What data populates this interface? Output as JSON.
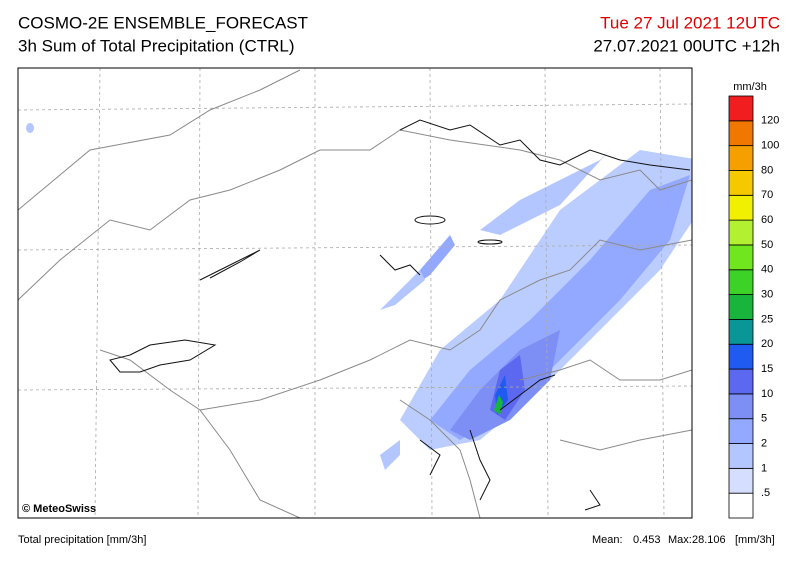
{
  "header": {
    "title": "COSMO-2E ENSEMBLE_FORECAST",
    "subtitle": "3h Sum of Total Precipitation (CTRL)",
    "valid_time": "Tue 27 Jul 2021 12UTC",
    "run": "27.07.2021 00UTC +12h"
  },
  "legend": {
    "unit": "mm/3h",
    "ticks": [
      {
        "value": 0.5,
        "label": ".5"
      },
      1,
      2,
      5,
      10,
      15,
      20,
      25,
      30,
      40,
      50,
      60,
      70,
      80,
      100,
      120
    ],
    "colors": [
      "#ffffff",
      "#d5deff",
      "#b4c6ff",
      "#93a8ff",
      "#7d8ff5",
      "#5c68f0",
      "#1f5bf0",
      "#0a9696",
      "#18b43c",
      "#3cd228",
      "#70e61e",
      "#b4f032",
      "#f0f000",
      "#f5c800",
      "#f5a000",
      "#f07800",
      "#f01e1e"
    ]
  },
  "credit": "© MeteoSwiss",
  "footer": {
    "left": "Total precipitation [mm/3h]",
    "mean_label": "Mean:",
    "mean": 0.453,
    "max_label": "Max:",
    "max": 28.106,
    "unit": "[mm/3h]"
  }
}
